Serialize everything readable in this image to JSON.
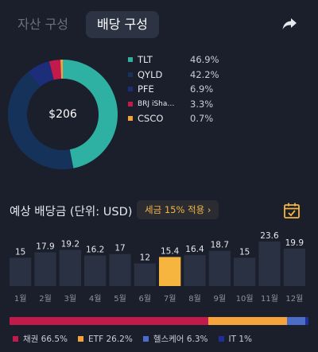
{
  "tabs": [
    {
      "label": "자산 구성",
      "active": false
    },
    {
      "label": "배당 구성",
      "active": true
    }
  ],
  "share_icon": "share-arrow-icon",
  "portfolio": {
    "total": "$206",
    "holdings": [
      {
        "name": "TLT",
        "pct": "46.9%",
        "value": 46.9,
        "color": "#2eb0a2"
      },
      {
        "name": "QYLD",
        "pct": "42.2%",
        "value": 42.2,
        "color": "#15335a"
      },
      {
        "name": "PFE",
        "pct": "6.9%",
        "value": 6.9,
        "color": "#1c2e7a"
      },
      {
        "name": "BRJ iSha…",
        "pct": "3.3%",
        "value": 3.3,
        "color": "#c21a4a"
      },
      {
        "name": "CSCO",
        "pct": "0.7%",
        "value": 0.7,
        "color": "#f2a23a"
      }
    ]
  },
  "dividend": {
    "title": "예상 배당금 (단위: USD)",
    "tax_label": "세금 15% 적용  ›",
    "calendar_icon": "calendar-check-icon"
  },
  "chart_data": {
    "type": "bar",
    "categories": [
      "1월",
      "2월",
      "3월",
      "4월",
      "5월",
      "6월",
      "7월",
      "8월",
      "9월",
      "10월",
      "11월",
      "12월"
    ],
    "values": [
      15,
      17.9,
      19.2,
      16.2,
      17,
      12,
      15.4,
      16.4,
      18.7,
      15,
      23.6,
      19.9
    ],
    "value_labels": [
      "15",
      "17.9",
      "19.2",
      "16.2",
      "17",
      "12",
      "15.4",
      "16.4",
      "18.7",
      "15",
      "23.6",
      "19.9"
    ],
    "highlight_index": 6,
    "bar_color": "#2a3142",
    "highlight_color": "#f5b53f"
  },
  "sectors": [
    {
      "label": "채권",
      "pct": "66.5%",
      "value": 66.5,
      "color": "#c21a4a"
    },
    {
      "label": "ETF",
      "pct": "26.2%",
      "value": 26.2,
      "color": "#f5a33a"
    },
    {
      "label": "헬스케어",
      "pct": "6.3%",
      "value": 6.3,
      "color": "#4b6dc8"
    },
    {
      "label": "IT",
      "pct": "1%",
      "value": 1,
      "color": "#1f2f9a"
    }
  ]
}
